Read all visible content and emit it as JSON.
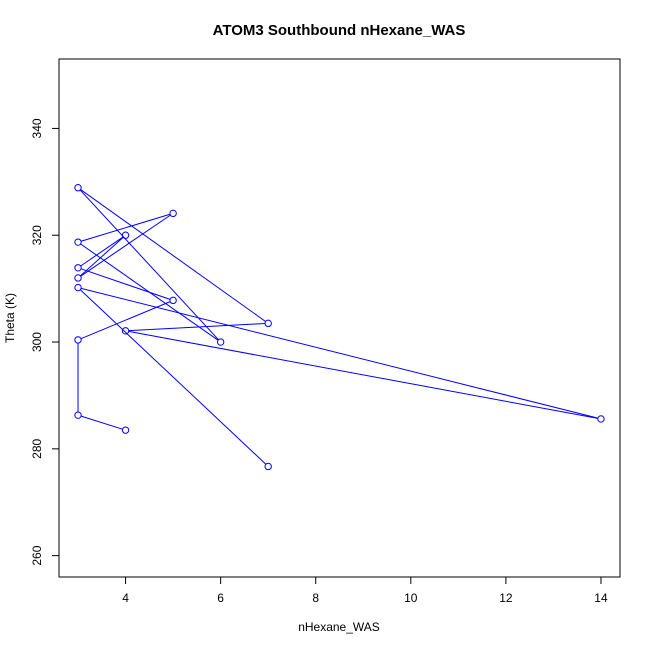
{
  "chart_data": {
    "type": "line",
    "title": "ATOM3 Southbound nHexane_WAS",
    "xlabel": "nHexane_WAS",
    "ylabel": "Theta (K)",
    "xlim": [
      2.6,
      14.4
    ],
    "ylim": [
      256,
      353
    ],
    "x_ticks": [
      "4",
      "6",
      "8",
      "10",
      "12",
      "14"
    ],
    "y_ticks": [
      "260",
      "280",
      "300",
      "320",
      "340"
    ],
    "grid": false,
    "marker": "open-circle",
    "series": [
      {
        "color": "#0000ff",
        "points": [
          {
            "x": 4,
            "y": 283.5
          },
          {
            "x": 3,
            "y": 286.3
          },
          {
            "x": 3,
            "y": 300.4
          },
          {
            "x": 5,
            "y": 307.8
          },
          {
            "x": 3,
            "y": 313.9
          },
          {
            "x": 4,
            "y": 320.0
          },
          {
            "x": 3,
            "y": 312.0
          },
          {
            "x": 5,
            "y": 324.1
          },
          {
            "x": 3,
            "y": 318.7
          },
          {
            "x": 6,
            "y": 300.0
          },
          {
            "x": 3,
            "y": 328.9
          },
          {
            "x": 7,
            "y": 303.5
          },
          {
            "x": 4,
            "y": 302.1
          },
          {
            "x": 14,
            "y": 285.6
          },
          {
            "x": 3,
            "y": 310.2
          },
          {
            "x": 7,
            "y": 276.7
          }
        ]
      }
    ]
  }
}
